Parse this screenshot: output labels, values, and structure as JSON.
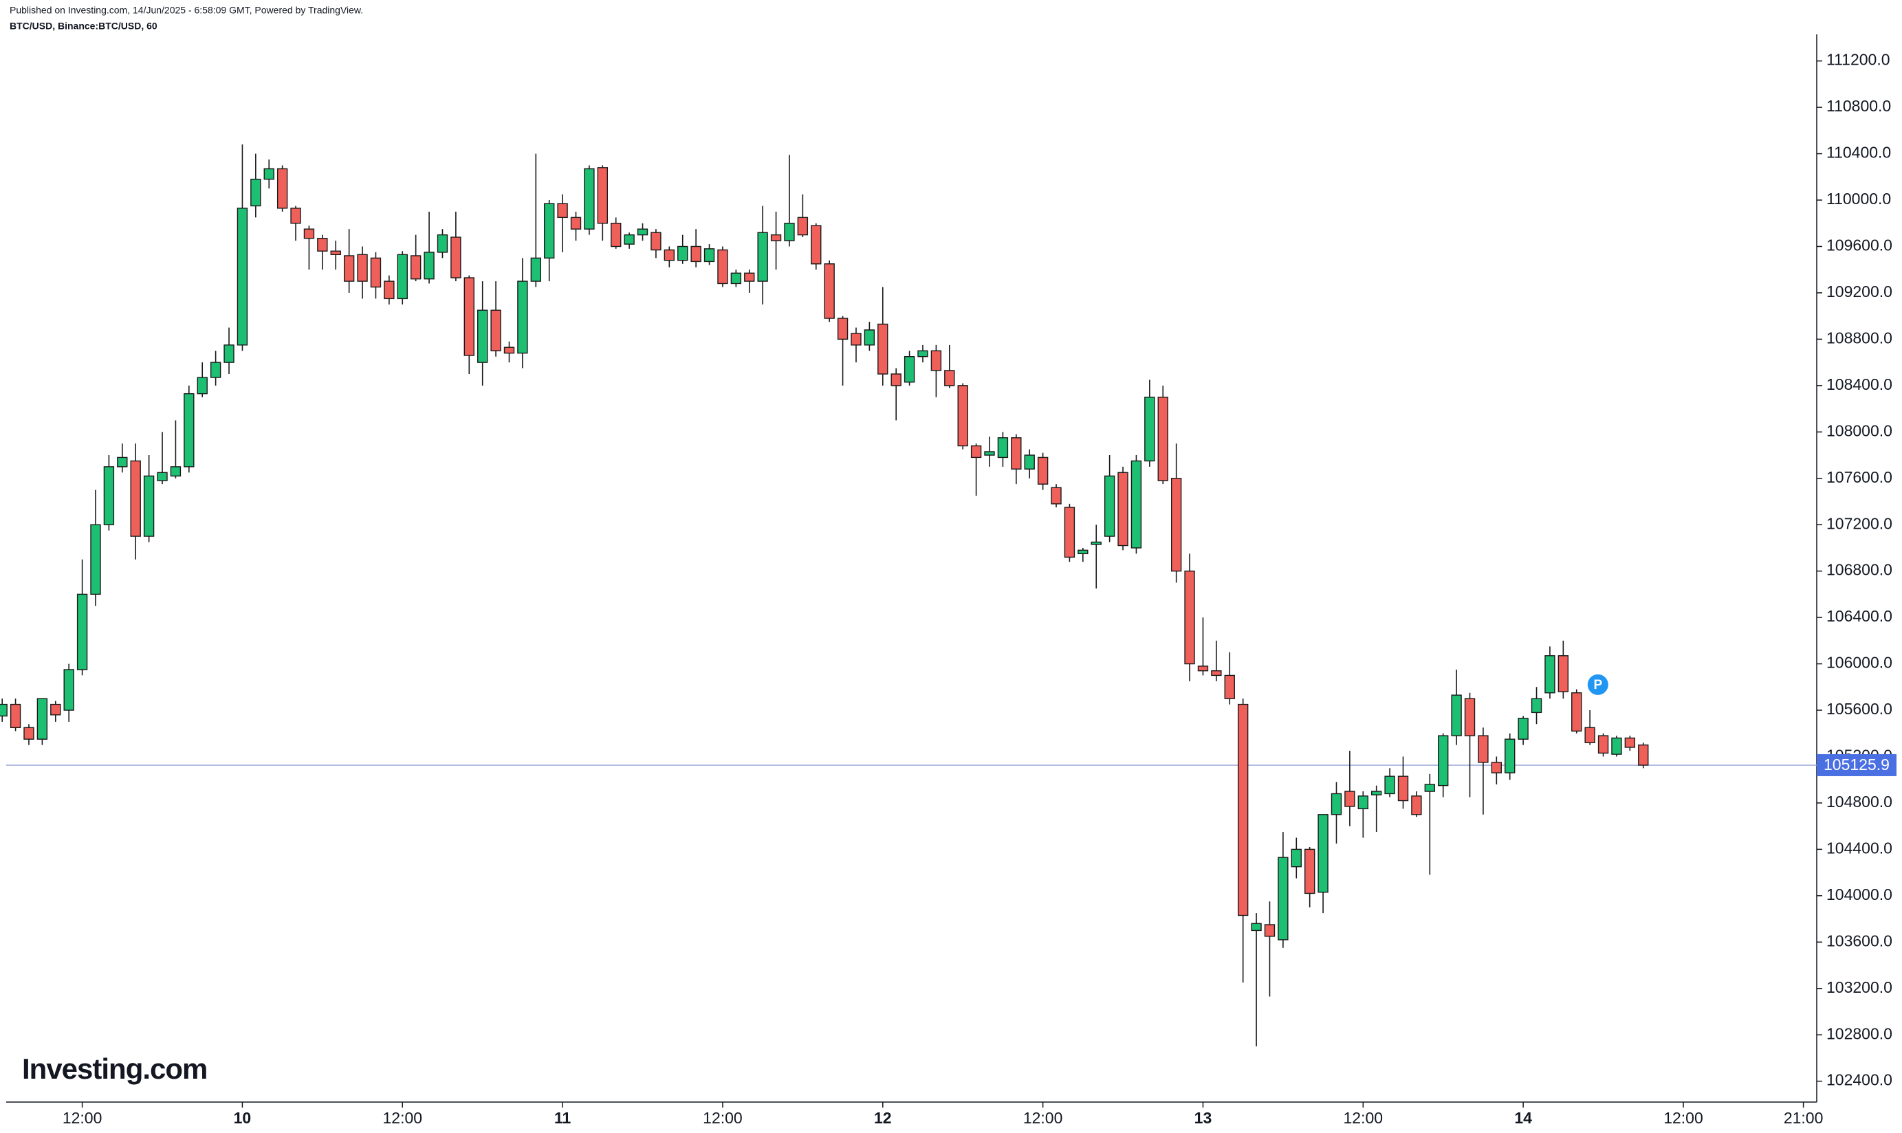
{
  "chart_data": {
    "type": "candlestick",
    "published": "Published on Investing.com, 14/Jun/2025 - 6:58:09 GMT, Powered by TradingView.",
    "title": "BTC/USD, Binance:BTC/USD, 60",
    "logo": "Investing.com",
    "up_color": "#1dbf73",
    "down_color": "#f0605a",
    "xlim": [
      6.3,
      142
    ],
    "ylim": [
      102220,
      111370
    ],
    "xticks": [
      {
        "value": 12,
        "label": "12:00"
      },
      {
        "value": 24,
        "label": "10"
      },
      {
        "value": 36,
        "label": "12:00"
      },
      {
        "value": 48,
        "label": "11"
      },
      {
        "value": 60,
        "label": "12:00"
      },
      {
        "value": 72,
        "label": "12"
      },
      {
        "value": 84,
        "label": "12:00"
      },
      {
        "value": 96,
        "label": "13"
      },
      {
        "value": 108,
        "label": "12:00"
      },
      {
        "value": 120,
        "label": "14"
      },
      {
        "value": 132,
        "label": "12:00"
      },
      {
        "value": 141,
        "label": "21:00"
      }
    ],
    "yticks": [
      {
        "value": 102400,
        "label": "102400.0"
      },
      {
        "value": 102800,
        "label": "102800.0"
      },
      {
        "value": 103200,
        "label": "103200.0"
      },
      {
        "value": 103600,
        "label": "103600.0"
      },
      {
        "value": 104000,
        "label": "104000.0"
      },
      {
        "value": 104400,
        "label": "104400.0"
      },
      {
        "value": 104800,
        "label": "104800.0"
      },
      {
        "value": 105200,
        "label": "105200.0"
      },
      {
        "value": 105600,
        "label": "105600.0"
      },
      {
        "value": 106000,
        "label": "106000.0"
      },
      {
        "value": 106400,
        "label": "106400.0"
      },
      {
        "value": 106800,
        "label": "106800.0"
      },
      {
        "value": 107200,
        "label": "107200.0"
      },
      {
        "value": 107600,
        "label": "107600.0"
      },
      {
        "value": 108000,
        "label": "108000.0"
      },
      {
        "value": 108400,
        "label": "108400.0"
      },
      {
        "value": 108800,
        "label": "108800.0"
      },
      {
        "value": 109200,
        "label": "109200.0"
      },
      {
        "value": 109600,
        "label": "109600.0"
      },
      {
        "value": 110000,
        "label": "110000.0"
      },
      {
        "value": 110400,
        "label": "110400.0"
      },
      {
        "value": 110800,
        "label": "110800.0"
      },
      {
        "value": 111200,
        "label": "111200.0"
      }
    ],
    "last_price": 105125.9,
    "annotation": {
      "text": "P",
      "x": 125,
      "y": 105820
    },
    "x": [
      6,
      7,
      8,
      9,
      10,
      11,
      12,
      13,
      14,
      15,
      16,
      17,
      18,
      19,
      20,
      21,
      22,
      23,
      24,
      25,
      26,
      27,
      28,
      29,
      30,
      31,
      32,
      33,
      34,
      35,
      36,
      37,
      38,
      39,
      40,
      41,
      42,
      43,
      44,
      45,
      46,
      47,
      48,
      49,
      50,
      51,
      52,
      53,
      54,
      55,
      56,
      57,
      58,
      59,
      60,
      61,
      62,
      63,
      64,
      65,
      66,
      67,
      68,
      69,
      70,
      71,
      72,
      73,
      74,
      75,
      76,
      77,
      78,
      79,
      80,
      81,
      82,
      83,
      84,
      85,
      86,
      87,
      88,
      89,
      90,
      91,
      92,
      93,
      94,
      95,
      96,
      97,
      98,
      99,
      100,
      101,
      102,
      103,
      104,
      105,
      106,
      107,
      108,
      109,
      110,
      111,
      112,
      113,
      114,
      115,
      116,
      117,
      118,
      119,
      120,
      121,
      122,
      123,
      124,
      125,
      126,
      127,
      128,
      129
    ],
    "open": [
      105550,
      105650,
      105450,
      105350,
      105650,
      105600,
      105950,
      106600,
      107200,
      107700,
      107750,
      107100,
      107580,
      107620,
      107700,
      108330,
      108470,
      108600,
      108750,
      109950,
      110180,
      110270,
      109930,
      109750,
      109670,
      109560,
      109520,
      109530,
      109500,
      109300,
      109150,
      109520,
      109320,
      109550,
      109680,
      109330,
      108600,
      109050,
      108730,
      108680,
      109300,
      109500,
      109970,
      109850,
      109750,
      110280,
      109800,
      109620,
      109700,
      109720,
      109570,
      109480,
      109600,
      109470,
      109570,
      109280,
      109370,
      109300,
      109700,
      109650,
      109850,
      109780,
      109450,
      108980,
      108850,
      108750,
      108930,
      108500,
      108430,
      108650,
      108700,
      108530,
      108400,
      107880,
      107800,
      107780,
      107950,
      107680,
      107780,
      107520,
      107350,
      106950,
      107030,
      107100,
      107650,
      107000,
      107750,
      108300,
      107600,
      106800,
      105980,
      105940,
      105900,
      105650,
      103700,
      103750,
      103620,
      104250,
      104400,
      104030,
      104700,
      104900,
      104750,
      104870,
      104880,
      105030,
      104860,
      104900,
      104950,
      105380,
      105700,
      105380,
      105150,
      105060,
      105350,
      105580,
      105750,
      106070,
      105750,
      105450,
      105380,
      105220,
      105360,
      105300
    ],
    "high": [
      105700,
      105700,
      105480,
      105700,
      105680,
      106000,
      106900,
      107500,
      107800,
      107900,
      107900,
      107800,
      108000,
      108100,
      108400,
      108600,
      108700,
      108900,
      110480,
      110400,
      110350,
      110300,
      109950,
      109780,
      109700,
      109650,
      109750,
      109600,
      109550,
      109350,
      109560,
      109700,
      109900,
      109750,
      109900,
      109350,
      109300,
      109300,
      108780,
      109500,
      110400,
      110000,
      110050,
      109900,
      110300,
      110300,
      109850,
      109720,
      109800,
      109750,
      109600,
      109700,
      109750,
      109620,
      109600,
      109400,
      109400,
      109950,
      109900,
      110390,
      110050,
      109800,
      109480,
      109000,
      108900,
      108950,
      109250,
      108550,
      108700,
      108750,
      108750,
      108750,
      108420,
      107900,
      107960,
      108000,
      107980,
      107850,
      107820,
      107550,
      107380,
      107000,
      107200,
      107800,
      107700,
      107800,
      108450,
      108400,
      107900,
      106950,
      106400,
      106200,
      106100,
      105700,
      103850,
      103950,
      104550,
      104500,
      104420,
      104700,
      104980,
      105250,
      104900,
      104950,
      105100,
      105200,
      104900,
      105050,
      105400,
      105950,
      105750,
      105450,
      105200,
      105400,
      105550,
      105800,
      106150,
      106200,
      105780,
      105600,
      105400,
      105380,
      105380,
      105320
    ],
    "low": [
      105500,
      105420,
      105300,
      105300,
      105500,
      105500,
      105900,
      106500,
      107150,
      107650,
      106900,
      107050,
      107550,
      107600,
      107650,
      108300,
      108400,
      108500,
      108700,
      109850,
      110100,
      109900,
      109650,
      109400,
      109400,
      109400,
      109200,
      109150,
      109150,
      109100,
      109100,
      109300,
      109280,
      109500,
      109300,
      108500,
      108400,
      108650,
      108600,
      108550,
      109250,
      109300,
      109550,
      109650,
      109700,
      109650,
      109580,
      109580,
      109650,
      109500,
      109420,
      109450,
      109420,
      109440,
      109250,
      109250,
      109200,
      109100,
      109400,
      109600,
      109680,
      109400,
      108950,
      108400,
      108600,
      108700,
      108400,
      108100,
      108400,
      108600,
      108300,
      108380,
      107850,
      107450,
      107700,
      107700,
      107550,
      107600,
      107500,
      107350,
      106880,
      106880,
      106650,
      107050,
      106980,
      106950,
      107700,
      107550,
      106700,
      105850,
      105900,
      105850,
      105650,
      103250,
      102700,
      103130,
      103550,
      104150,
      103900,
      103850,
      104450,
      104600,
      104500,
      104550,
      104850,
      104750,
      104680,
      104180,
      104850,
      105300,
      104850,
      104700,
      104960,
      105000,
      105300,
      105480,
      105700,
      105700,
      105400,
      105300,
      105200,
      105200,
      105250,
      105100
    ],
    "close": [
      105650,
      105450,
      105350,
      105700,
      105560,
      105950,
      106600,
      107200,
      107700,
      107780,
      107100,
      107620,
      107650,
      107700,
      108330,
      108470,
      108600,
      108750,
      109930,
      110180,
      110270,
      109930,
      109800,
      109670,
      109560,
      109530,
      109300,
      109300,
      109250,
      109150,
      109530,
      109320,
      109550,
      109700,
      109330,
      108660,
      109050,
      108700,
      108680,
      109300,
      109500,
      109970,
      109850,
      109750,
      110270,
      109800,
      109600,
      109700,
      109750,
      109570,
      109480,
      109600,
      109470,
      109580,
      109280,
      109370,
      109300,
      109720,
      109650,
      109800,
      109700,
      109450,
      108980,
      108800,
      108750,
      108880,
      108500,
      108400,
      108650,
      108700,
      108530,
      108400,
      107880,
      107780,
      107830,
      107950,
      107680,
      107800,
      107550,
      107380,
      106920,
      106980,
      107050,
      107620,
      107020,
      107750,
      108300,
      107580,
      106800,
      106000,
      105940,
      105900,
      105700,
      103830,
      103760,
      103650,
      104330,
      104400,
      104020,
      104700,
      104880,
      104770,
      104860,
      104900,
      105030,
      104820,
      104700,
      104960,
      105380,
      105730,
      105380,
      105150,
      105060,
      105350,
      105530,
      105700,
      106070,
      105760,
      105420,
      105320,
      105230,
      105360,
      105280,
      105125.9
    ]
  }
}
